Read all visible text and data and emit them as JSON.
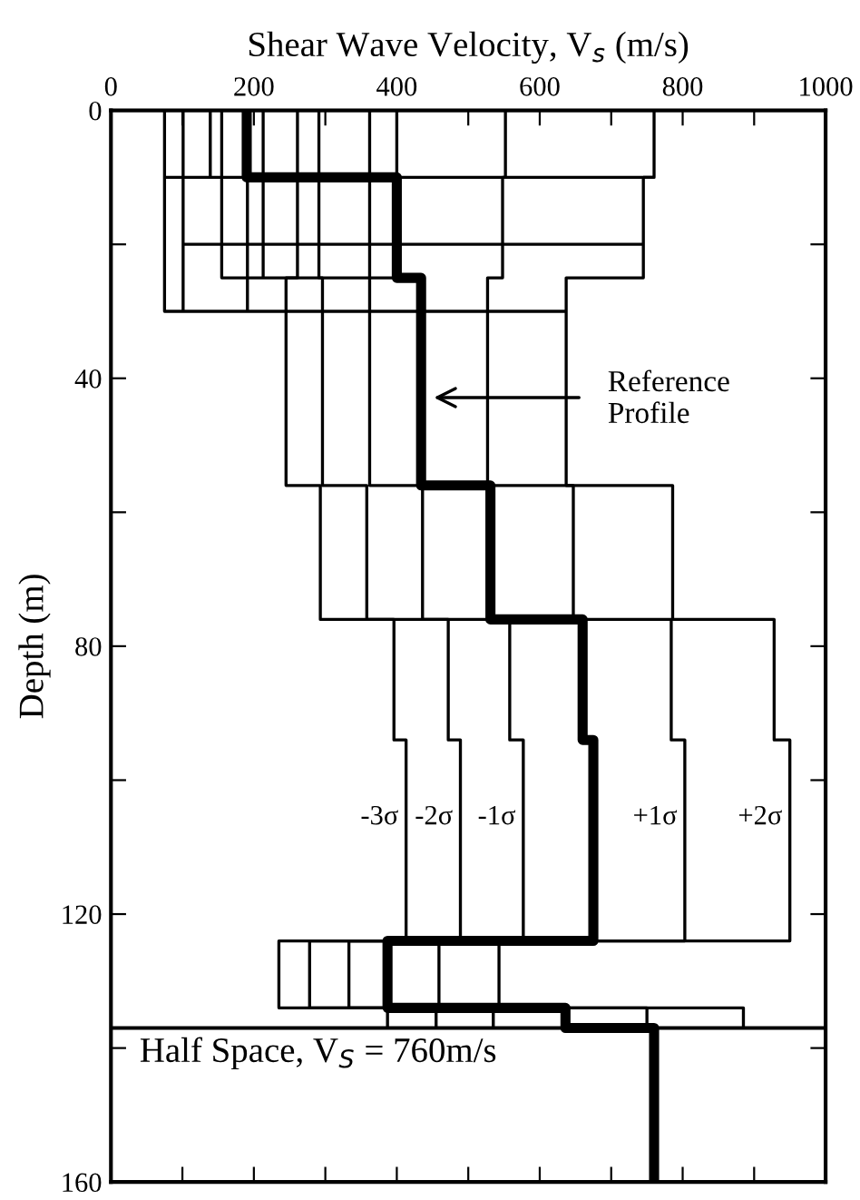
{
  "chart_data": {
    "type": "line",
    "xlabel": "Shear Wave Velocity, V$_{s}$ (m/s)",
    "ylabel": "Depth (m)",
    "xlim": [
      0,
      1000
    ],
    "ylim": [
      160,
      0
    ],
    "xticks": [
      0,
      {
        "value": 100,
        "label": null
      },
      200,
      {
        "value": 300,
        "label": null
      },
      400,
      {
        "value": 500,
        "label": null
      },
      600,
      {
        "value": 700,
        "label": null
      },
      800,
      {
        "value": 900,
        "label": null
      },
      1000
    ],
    "yticks": [
      0,
      {
        "value": 20,
        "label": null
      },
      40,
      {
        "value": 60,
        "label": null
      },
      80,
      {
        "value": 100,
        "label": null
      },
      120,
      {
        "value": 140,
        "label": null
      },
      160
    ],
    "series": [
      {
        "color": "#000000",
        "x": [
          190,
          190,
          400,
          400,
          434,
          434,
          531,
          531,
          660,
          660,
          675,
          675,
          387,
          387,
          636,
          636,
          760,
          760
        ],
        "values": [
          0,
          10,
          10,
          25,
          25,
          56,
          56,
          76,
          76,
          94,
          94,
          124,
          124,
          134,
          134,
          137,
          137,
          160
        ]
      },
      {
        "name": "-3σ",
        "color": "#000000",
        "x": [
          261,
          261,
          245,
          245,
          293,
          293,
          396,
          396,
          413,
          413,
          235,
          235,
          387,
          387
        ],
        "values": [
          0,
          25,
          25,
          56,
          56,
          76,
          76,
          94,
          94,
          124,
          124,
          134,
          134,
          137
        ]
      },
      {
        "name": "-2σ",
        "color": "#000000",
        "x": [
          291,
          291,
          296,
          296,
          358,
          358,
          472,
          472,
          489,
          489,
          278,
          278,
          455,
          455
        ],
        "values": [
          0,
          25,
          25,
          56,
          56,
          76,
          76,
          94,
          94,
          124,
          124,
          134,
          134,
          137
        ]
      },
      {
        "name": "-1σ",
        "color": "#000000",
        "x": [
          362,
          362,
          436,
          436,
          558,
          558,
          577,
          577,
          333,
          333,
          535,
          535
        ],
        "values": [
          0,
          56,
          56,
          76,
          76,
          94,
          94,
          124,
          124,
          134,
          134,
          137
        ]
      },
      {
        "name": "+1σ",
        "color": "#000000",
        "x": [
          552,
          552,
          548,
          548,
          527,
          527,
          647,
          647,
          784,
          784,
          803,
          803,
          459,
          459,
          750,
          750
        ],
        "values": [
          0,
          10,
          10,
          25,
          25,
          56,
          56,
          76,
          76,
          94,
          94,
          124,
          124,
          134,
          134,
          137
        ]
      },
      {
        "name": "+2σ",
        "color": "#000000",
        "x": [
          760,
          760,
          745,
          745,
          637,
          637,
          786,
          786,
          928,
          928,
          950,
          950,
          543,
          543,
          885,
          885
        ],
        "values": [
          0,
          10,
          10,
          25,
          25,
          56,
          56,
          76,
          76,
          94,
          94,
          124,
          124,
          134,
          134,
          137
        ]
      },
      {
        "color": "#000000",
        "x": [
          75,
          75,
          636
        ],
        "values": [
          0,
          30,
          30
        ]
      },
      {
        "color": "#000000",
        "x": [
          101,
          101
        ],
        "values": [
          0,
          30
        ]
      },
      {
        "color": "#000000",
        "x": [
          101,
          745
        ],
        "values": [
          20,
          20
        ]
      },
      {
        "color": "#000000",
        "x": [
          400,
          400,
          760
        ],
        "values": [
          0,
          10,
          10
        ]
      },
      {
        "color": "#000000",
        "x": [
          139,
          139
        ],
        "values": [
          0,
          10
        ]
      },
      {
        "color": "#000000",
        "x": [
          155,
          155,
          434
        ],
        "values": [
          0,
          25,
          25
        ]
      },
      {
        "color": "#000000",
        "x": [
          191,
          191
        ],
        "values": [
          0,
          30
        ]
      },
      {
        "color": "#000000",
        "x": [
          213,
          213
        ],
        "values": [
          0,
          25
        ]
      },
      {
        "color": "#000000",
        "x": [
          75,
          190
        ],
        "values": [
          10,
          10
        ]
      }
    ],
    "ref_lines": [
      {
        "axis": "y",
        "value": 137,
        "color": "#000000"
      }
    ],
    "annotations": [
      "Reference\nProfile",
      "Half Space, V$_{S}$ = 760m/s"
    ],
    "legend": false,
    "grid": false
  }
}
